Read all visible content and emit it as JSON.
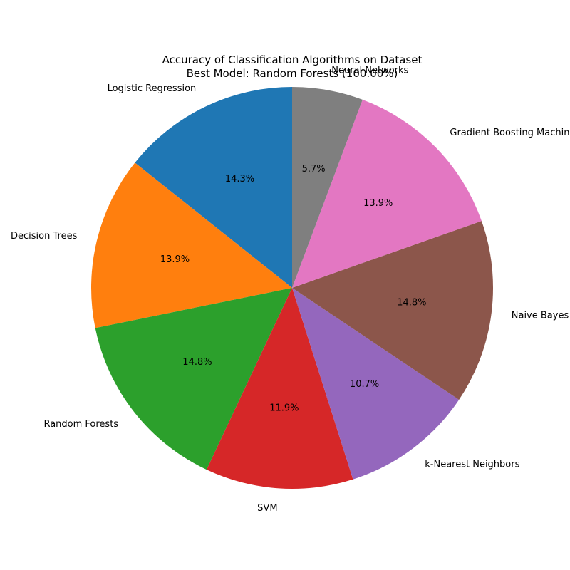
{
  "chart_data": {
    "type": "pie",
    "title": "Accuracy of Classification Algorithms on Dataset",
    "subtitle": "Best Model: Random Forests (100.00%)",
    "start_angle_deg": 90,
    "direction": "counterclockwise",
    "slices": [
      {
        "label": "Logistic Regression",
        "percent": 14.3,
        "pct_label": "14.3%",
        "color": "#1f77b4"
      },
      {
        "label": "Decision Trees",
        "percent": 13.9,
        "pct_label": "13.9%",
        "color": "#ff7f0e"
      },
      {
        "label": "Random Forests",
        "percent": 14.8,
        "pct_label": "14.8%",
        "color": "#2ca02c"
      },
      {
        "label": "SVM",
        "percent": 11.9,
        "pct_label": "11.9%",
        "color": "#d62728"
      },
      {
        "label": "k-Nearest Neighbors",
        "percent": 10.7,
        "pct_label": "10.7%",
        "color": "#9467bd"
      },
      {
        "label": "Naive Bayes",
        "percent": 14.8,
        "pct_label": "14.8%",
        "color": "#8c564b"
      },
      {
        "label": "Gradient Boosting Machines",
        "percent": 13.9,
        "pct_label": "13.9%",
        "color": "#e377c2"
      },
      {
        "label": "Neural Networks",
        "percent": 5.7,
        "pct_label": "5.7%",
        "color": "#7f7f7f"
      }
    ]
  }
}
